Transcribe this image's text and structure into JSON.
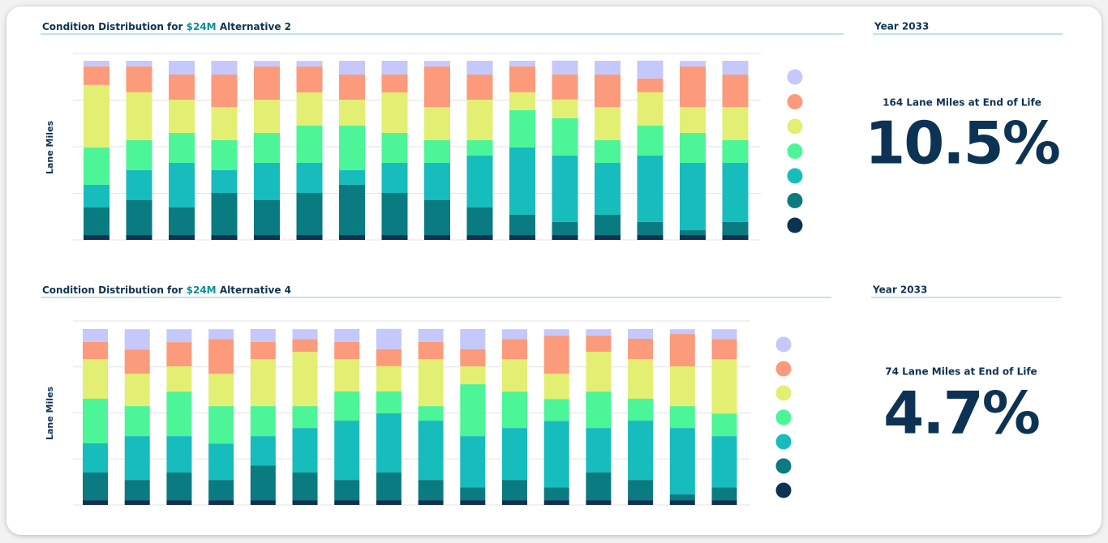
{
  "chart_data": [
    {
      "type": "bar",
      "stacked": true,
      "title": {
        "prefix": "Condition Distribution for",
        "highlight": "$24M",
        "suffix": "Alternative 2"
      },
      "y_label": "Lane Miles",
      "ylim": [
        0,
        100
      ],
      "yticks": [
        0,
        25,
        50,
        75,
        100
      ],
      "grid": true,
      "series": [
        {
          "color": "#0d3354",
          "values": [
            2.6,
            2.6,
            2.6,
            2.6,
            2.6,
            2.6,
            2.6,
            2.6,
            2.6,
            2.6,
            2.6,
            2.6,
            2.6,
            2.6,
            2.6,
            2.6
          ]
        },
        {
          "color": "#0a7b80",
          "values": [
            14.8,
            18.7,
            14.8,
            22.6,
            18.7,
            22.6,
            27,
            22.6,
            18.7,
            14.8,
            10.9,
            7,
            10.9,
            7,
            2.6,
            7
          ]
        },
        {
          "color": "#17bcbc",
          "values": [
            12.2,
            16.1,
            23.9,
            12.2,
            20,
            16.1,
            7.8,
            16.1,
            20,
            27.8,
            36.1,
            35.7,
            27.8,
            35.7,
            36.1,
            31.7
          ]
        },
        {
          "color": "#4cf597",
          "values": [
            20,
            16.1,
            16.1,
            16.1,
            16.1,
            20,
            23.9,
            16.1,
            12.2,
            8.3,
            20,
            20,
            12.2,
            16.1,
            16.1,
            12.2
          ]
        },
        {
          "color": "#e3ef72",
          "values": [
            33.5,
            25.7,
            17.8,
            17.8,
            17.8,
            17.8,
            13.9,
            21.7,
            17.8,
            21.7,
            9.6,
            10,
            17.8,
            17.8,
            13.9,
            17.8
          ]
        },
        {
          "color": "#fb9b7b",
          "values": [
            10,
            13.9,
            13.5,
            17.4,
            17.8,
            13.9,
            13.5,
            9.6,
            21.7,
            13.5,
            13.9,
            13.5,
            17.4,
            7.4,
            21.7,
            17.4
          ]
        },
        {
          "color": "#c5c8fb",
          "values": [
            3,
            3,
            7.4,
            7.4,
            3,
            3,
            7.4,
            7.4,
            3,
            7.4,
            3,
            7.4,
            7.4,
            9.6,
            3,
            7.4
          ]
        }
      ],
      "panel": {
        "heading": "Year 2033",
        "caption": "164 Lane Miles at End of Life",
        "figure": {
          "value": 10.5,
          "label": "10.5%"
        }
      }
    },
    {
      "type": "bar",
      "stacked": true,
      "title": {
        "prefix": "Condition Distribution for",
        "highlight": "$24M",
        "suffix": "Alternative 4"
      },
      "y_label": "Lane Miles",
      "ylim": [
        0,
        100
      ],
      "yticks": [
        0,
        25,
        50,
        75,
        100
      ],
      "grid": true,
      "series": [
        {
          "color": "#0d3354",
          "values": [
            2.6,
            2.6,
            2.6,
            2.6,
            2.6,
            2.6,
            2.6,
            2.6,
            2.6,
            2.6,
            2.6,
            2.6,
            2.6,
            2.6,
            2.6,
            2.6
          ]
        },
        {
          "color": "#0a7b80",
          "values": [
            15,
            11,
            15,
            11,
            18.9,
            15,
            11,
            15,
            11,
            7,
            11,
            7,
            15,
            11,
            3.1,
            7
          ]
        },
        {
          "color": "#17bcbc",
          "values": [
            15.9,
            23.8,
            19.8,
            19.8,
            15.9,
            24.2,
            32.2,
            32.2,
            32.2,
            27.8,
            28.2,
            36.1,
            24.2,
            32.2,
            36.1,
            27.8
          ]
        },
        {
          "color": "#4cf597",
          "values": [
            24.2,
            16.3,
            24.2,
            20.3,
            16.3,
            11.9,
            15.9,
            11.9,
            7.9,
            28.2,
            19.8,
            11.9,
            19.8,
            11.9,
            11.9,
            12.3
          ]
        },
        {
          "color": "#e3ef72",
          "values": [
            21.6,
            17.6,
            13.7,
            17.6,
            25.6,
            29.5,
            17.6,
            13.7,
            25.6,
            9.7,
            17.6,
            13.7,
            21.6,
            21.6,
            21.6,
            29.5
          ]
        },
        {
          "color": "#fb9b7b",
          "values": [
            9.3,
            13.2,
            13.2,
            18.9,
            9.3,
            7,
            9.3,
            9.3,
            9.3,
            9.3,
            11,
            20.7,
            8.8,
            11,
            17.6,
            11
          ]
        },
        {
          "color": "#c5c8fb",
          "values": [
            7,
            11,
            7,
            5.3,
            7,
            5.3,
            7,
            11,
            7,
            11,
            5.3,
            3.5,
            3.5,
            5.3,
            2.6,
            5.3
          ]
        }
      ],
      "panel": {
        "heading": "Year 2033",
        "caption": "74 Lane Miles at End of Life",
        "figure": {
          "value": 4.7,
          "label": "4.7%"
        }
      }
    }
  ]
}
